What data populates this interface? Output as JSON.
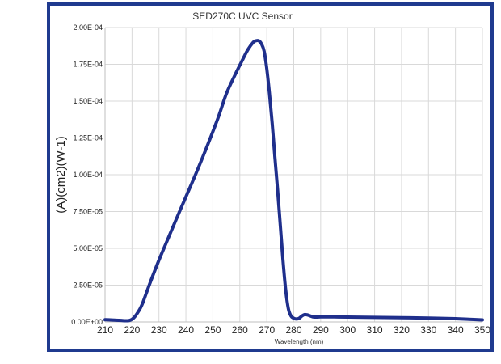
{
  "chart_data": {
    "type": "line",
    "title": "SED270C UVC Sensor",
    "xlabel": "Wavelength (nm)",
    "ylabel": "(A)(cm2)(W-1)",
    "xlim": [
      210,
      350
    ],
    "ylim": [
      0,
      0.0002
    ],
    "x_ticks": [
      "210",
      "220",
      "230",
      "240",
      "250",
      "260",
      "270",
      "280",
      "290",
      "300",
      "310",
      "320",
      "330",
      "340",
      "350"
    ],
    "y_ticks": [
      "0.00E+00",
      "2.50E-05",
      "5.00E-05",
      "7.50E-05",
      "1.00E-04",
      "1.25E-04",
      "1.50E-04",
      "1.75E-04",
      "2.00E-04"
    ],
    "grid": true,
    "line_color": "#1f2f8c",
    "series": [
      {
        "x": [
          210,
          212,
          214,
          216,
          218,
          219,
          220,
          221,
          222,
          223,
          224,
          225,
          227,
          230,
          233,
          236,
          240,
          244,
          248,
          252,
          255,
          258,
          261,
          263,
          265,
          266,
          267,
          268,
          269,
          270,
          271,
          272,
          273,
          274,
          275,
          276,
          277,
          278,
          279,
          280,
          281,
          282,
          283,
          284,
          285,
          286,
          287,
          288,
          289,
          290,
          295,
          300,
          310,
          320,
          330,
          340,
          345,
          350
        ],
        "values": [
          1.5e-06,
          1.4e-06,
          1.2e-06,
          1e-06,
          8e-07,
          1e-06,
          1.8e-06,
          3.5e-06,
          6e-06,
          9e-06,
          1.3e-05,
          1.8e-05,
          2.8e-05,
          4.2e-05,
          5.5e-05,
          6.8e-05,
          8.5e-05,
          0.000102,
          0.00012,
          0.000139,
          0.000155,
          0.000167,
          0.000178,
          0.000185,
          0.00019,
          0.000191,
          0.000191,
          0.000189,
          0.000184,
          0.000172,
          0.000155,
          0.000135,
          0.000112,
          9e-05,
          6.6e-05,
          4.2e-05,
          2.2e-05,
          9e-06,
          4e-06,
          2.5e-06,
          2e-06,
          2.5e-06,
          4e-06,
          5e-06,
          4.8e-06,
          4.2e-06,
          3.5e-06,
          3.3e-06,
          3.3e-06,
          3.4e-06,
          3.4e-06,
          3.3e-06,
          3.1e-06,
          2.9e-06,
          2.6e-06,
          2.2e-06,
          1.8e-06,
          1.4e-06
        ]
      }
    ]
  }
}
